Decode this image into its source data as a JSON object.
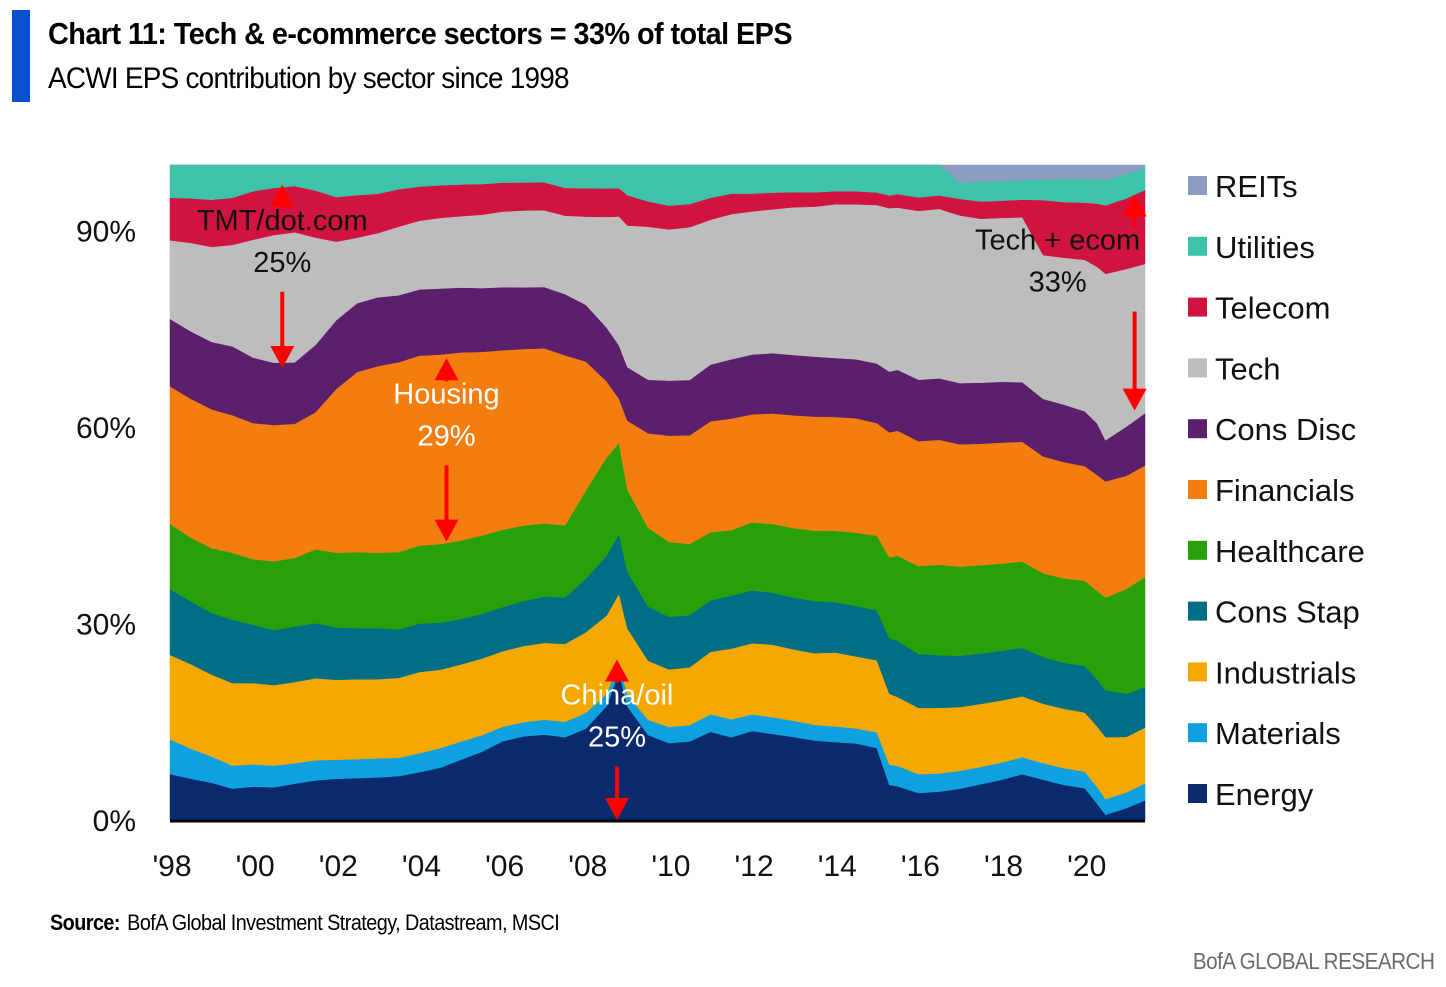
{
  "header": {
    "title": "Chart 11: Tech & e-commerce sectors = 33% of total EPS",
    "subtitle": "ACWI EPS contribution by sector since 1998",
    "accent_color": "#0a4fd0"
  },
  "footer": {
    "source_label": "Source:",
    "source_text": "BofA Global Investment Strategy, Datastream, MSCI",
    "brand": "BofA GLOBAL RESEARCH"
  },
  "chart_data": {
    "type": "area",
    "stacked": true,
    "title": "ACWI EPS contribution by sector since 1998",
    "xlabel": "",
    "ylabel": "",
    "xlim": [
      1998,
      2021.45
    ],
    "ylim": [
      0,
      100
    ],
    "y_ticks": [
      0,
      30,
      60,
      90
    ],
    "y_tick_labels": [
      "0%",
      "30%",
      "60%",
      "90%"
    ],
    "x_ticks": [
      1998,
      2000,
      2002,
      2004,
      2006,
      2008,
      2010,
      2012,
      2014,
      2016,
      2018,
      2020
    ],
    "x_tick_labels": [
      "'98",
      "'00",
      "'02",
      "'04",
      "'06",
      "'08",
      "'10",
      "'12",
      "'14",
      "'16",
      "'18",
      "'20"
    ],
    "grid": false,
    "legend_position": "right",
    "x": [
      1998.0,
      1998.5,
      1999.0,
      1999.5,
      2000.0,
      2000.5,
      2001.0,
      2001.5,
      2002.0,
      2002.5,
      2003.0,
      2003.5,
      2004.0,
      2004.5,
      2005.0,
      2005.5,
      2006.0,
      2006.5,
      2007.0,
      2007.5,
      2008.0,
      2008.5,
      2008.8,
      2009.0,
      2009.5,
      2010.0,
      2010.5,
      2011.0,
      2011.5,
      2012.0,
      2012.5,
      2013.0,
      2013.5,
      2014.0,
      2014.5,
      2015.0,
      2015.3,
      2015.5,
      2016.0,
      2016.5,
      2017.0,
      2017.5,
      2018.0,
      2018.5,
      2019.0,
      2019.5,
      2020.0,
      2020.3,
      2020.5,
      2021.0,
      2021.45
    ],
    "series": [
      {
        "name": "Energy",
        "color": "#0b2a6e",
        "values": [
          7.0,
          6.3,
          5.7,
          4.8,
          5.1,
          5.0,
          5.5,
          5.9,
          6.3,
          6.4,
          6.5,
          6.7,
          7.3,
          8.0,
          9.3,
          10.7,
          12.5,
          13.4,
          13.8,
          13.4,
          14.5,
          18.0,
          23.5,
          18.0,
          13.5,
          12.3,
          12.5,
          14.0,
          13.0,
          14.0,
          13.4,
          12.8,
          12.2,
          11.9,
          11.7,
          11.0,
          5.2,
          5.0,
          4.0,
          4.2,
          4.7,
          5.4,
          6.1,
          7.0,
          6.3,
          5.5,
          5.0,
          2.5,
          0.8,
          1.8,
          3.0
        ]
      },
      {
        "name": "Materials",
        "color": "#0ea1e0",
        "values": [
          5.3,
          4.6,
          4.0,
          3.5,
          3.4,
          3.3,
          3.1,
          3.0,
          2.9,
          2.9,
          2.9,
          2.8,
          2.9,
          3.0,
          2.8,
          2.6,
          2.3,
          2.3,
          2.4,
          2.5,
          2.5,
          1.9,
          1.5,
          1.9,
          2.4,
          2.6,
          2.6,
          2.8,
          2.8,
          2.6,
          2.6,
          2.5,
          2.4,
          2.4,
          2.3,
          2.4,
          3.0,
          3.0,
          2.8,
          2.7,
          2.7,
          2.6,
          2.6,
          2.6,
          2.6,
          2.6,
          2.6,
          2.6,
          2.4,
          2.4,
          2.6
        ]
      },
      {
        "name": "Industrials",
        "color": "#f5a800",
        "values": [
          12.9,
          12.9,
          12.5,
          12.6,
          12.4,
          12.3,
          12.3,
          12.2,
          12.2,
          12.2,
          12.1,
          12.2,
          12.4,
          12.0,
          11.9,
          12.0,
          12.0,
          12.2,
          12.4,
          12.6,
          12.8,
          12.4,
          11.0,
          10.5,
          9.4,
          9.2,
          9.2,
          9.9,
          11.1,
          11.2,
          11.3,
          11.0,
          11.0,
          11.3,
          11.0,
          11.0,
          10.5,
          10.2,
          9.8,
          9.7,
          9.6,
          9.5,
          9.4,
          9.3,
          9.3,
          9.3,
          9.3,
          9.4,
          9.5,
          8.5,
          8.5
        ]
      },
      {
        "name": "Cons Stap",
        "color": "#006f85",
        "values": [
          10.0,
          9.6,
          9.4,
          9.7,
          8.9,
          8.4,
          8.4,
          8.2,
          8.0,
          7.8,
          7.8,
          7.4,
          7.4,
          7.2,
          7.0,
          7.0,
          7.0,
          7.2,
          7.5,
          7.5,
          8.5,
          9.5,
          9.5,
          9.0,
          8.6,
          8.4,
          8.3,
          8.2,
          8.3,
          8.3,
          8.1,
          8.0,
          8.0,
          7.7,
          7.7,
          7.6,
          8.2,
          8.3,
          8.0,
          7.8,
          7.7,
          7.6,
          7.5,
          7.4,
          7.3,
          7.2,
          7.3,
          7.3,
          7.2,
          6.6,
          6.2
        ]
      },
      {
        "name": "Healthcare",
        "color": "#27a00a",
        "values": [
          10.0,
          9.7,
          9.9,
          10.2,
          10.0,
          10.5,
          10.4,
          11.0,
          11.4,
          11.6,
          11.5,
          11.8,
          11.9,
          12.0,
          12.1,
          12.3,
          12.3,
          12.1,
          11.8,
          11.7,
          14.0,
          15.5,
          14.5,
          13.0,
          12.5,
          12.0,
          11.3,
          10.8,
          10.3,
          10.7,
          10.7,
          10.7,
          10.8,
          10.9,
          11.2,
          11.4,
          12.0,
          12.6,
          13.0,
          13.4,
          13.4,
          13.3,
          13.2,
          13.2,
          13.1,
          13.2,
          13.4,
          13.7,
          14.2,
          16.0,
          16.8
        ]
      },
      {
        "name": "Financials",
        "color": "#f47d10",
        "values": [
          21.0,
          21.2,
          21.2,
          21.0,
          20.8,
          20.8,
          20.3,
          20.4,
          25.0,
          27.5,
          28.5,
          29.0,
          29.0,
          29.0,
          29.0,
          28.8,
          28.5,
          28.3,
          28.3,
          27.5,
          20.5,
          12.0,
          7.0,
          11.0,
          15.0,
          17.0,
          17.3,
          17.6,
          17.5,
          17.0,
          17.2,
          17.4,
          17.5,
          17.4,
          17.5,
          17.2,
          18.5,
          18.5,
          18.5,
          18.5,
          18.4,
          18.3,
          18.3,
          18.3,
          18.3,
          18.2,
          18.0,
          18.0,
          17.8,
          17.3,
          17.0
        ]
      },
      {
        "name": "Cons Disc",
        "color": "#5c1f6b",
        "values": [
          10.3,
          10.3,
          10.3,
          10.5,
          10.0,
          9.5,
          9.3,
          10.0,
          10.5,
          10.5,
          10.5,
          10.2,
          10.1,
          10.1,
          10.0,
          10.0,
          10.0,
          9.9,
          9.9,
          9.9,
          9.0,
          8.5,
          8.5,
          8.5,
          8.5,
          8.8,
          8.8,
          9.0,
          9.3,
          9.4,
          9.4,
          9.3,
          9.2,
          9.0,
          9.0,
          9.1,
          9.0,
          9.0,
          9.1,
          9.1,
          9.2,
          9.2,
          9.2,
          9.1,
          9.0,
          9.0,
          8.6,
          8.0,
          6.3,
          7.5,
          8.0
        ]
      },
      {
        "name": "Tech",
        "color": "#bdbdbd",
        "values": [
          12.0,
          13.5,
          14.5,
          15.5,
          18.0,
          19.5,
          19.7,
          16.0,
          12.0,
          10.0,
          9.8,
          10.5,
          10.5,
          10.8,
          11.0,
          11.5,
          12.0,
          12.3,
          12.4,
          12.7,
          14.0,
          17.5,
          20.5,
          22.5,
          24.3,
          24.2,
          24.3,
          23.0,
          22.8,
          22.5,
          22.4,
          22.8,
          23.0,
          23.5,
          23.7,
          24.2,
          24.2,
          24.0,
          25.0,
          25.1,
          25.2,
          24.7,
          24.8,
          25.2,
          22.5,
          23.0,
          23.8,
          24.3,
          25.5,
          24.1,
          22.8
        ]
      },
      {
        "name": "Telecom",
        "color": "#d0143f",
        "values": [
          6.5,
          6.8,
          7.2,
          7.2,
          7.4,
          7.2,
          7.0,
          7.0,
          6.8,
          6.5,
          6.0,
          5.7,
          5.2,
          5.0,
          4.9,
          4.8,
          4.6,
          4.5,
          4.5,
          4.5,
          4.5,
          4.5,
          4.5,
          4.8,
          4.0,
          3.8,
          3.7,
          3.5,
          3.2,
          2.8,
          2.6,
          2.3,
          2.2,
          2.0,
          2.0,
          1.9,
          1.9,
          2.0,
          2.0,
          2.0,
          2.5,
          2.6,
          2.6,
          2.7,
          8.6,
          8.7,
          9.0,
          9.8,
          10.5,
          10.8,
          11.3
        ]
      },
      {
        "name": "Utilities",
        "color": "#3ec3ab",
        "values": [
          5.0,
          5.1,
          5.3,
          5.0,
          4.0,
          3.5,
          3.2,
          3.8,
          4.9,
          4.6,
          4.4,
          3.7,
          3.3,
          3.1,
          3.0,
          3.0,
          2.8,
          2.8,
          2.8,
          3.7,
          3.7,
          3.7,
          3.7,
          4.8,
          5.8,
          6.5,
          6.2,
          5.2,
          4.5,
          4.5,
          4.3,
          4.2,
          4.2,
          4.0,
          4.0,
          4.2,
          4.5,
          4.3,
          4.8,
          4.5,
          2.5,
          3.0,
          3.0,
          3.0,
          3.2,
          3.6,
          3.7,
          3.8,
          3.9,
          3.7,
          3.5
        ]
      },
      {
        "name": "REITs",
        "color": "#8a9cbf",
        "values": [
          0.0,
          0.0,
          0.0,
          0.0,
          0.0,
          0.0,
          0.0,
          0.0,
          0.0,
          0.0,
          0.0,
          0.0,
          0.0,
          0.0,
          0.0,
          0.0,
          0.0,
          0.0,
          0.0,
          0.0,
          0.0,
          0.0,
          0.0,
          0.0,
          0.0,
          0.0,
          0.0,
          0.0,
          0.0,
          0.0,
          0.0,
          0.0,
          0.0,
          0.0,
          0.0,
          0.0,
          0.0,
          0.0,
          0.0,
          0.0,
          2.6,
          2.5,
          2.4,
          2.3,
          2.3,
          2.2,
          2.2,
          2.2,
          2.3,
          1.4,
          0.3
        ]
      }
    ],
    "legend_order": [
      "REITs",
      "Utilities",
      "Telecom",
      "Tech",
      "Cons Disc",
      "Financials",
      "Healthcare",
      "Cons Stap",
      "Industrials",
      "Materials",
      "Energy"
    ],
    "annotations": [
      {
        "id": "tmt",
        "lines": [
          "TMT/dot.com",
          "25%"
        ],
        "x": 2000.7,
        "y_label": 84,
        "arrow_top": 97,
        "arrow_bottom": 69,
        "arrow_color": "#ff0000",
        "text_color": "#111111"
      },
      {
        "id": "housing",
        "lines": [
          "Housing",
          "29%"
        ],
        "x": 2004.65,
        "y_label": 57.5,
        "arrow_top": 70.5,
        "arrow_bottom": 42.5,
        "arrow_color": "#ff0000",
        "text_color": "#ffffff"
      },
      {
        "id": "china",
        "lines": [
          "China/oil",
          "25%"
        ],
        "x": 2008.75,
        "y_label": 11.5,
        "arrow_top": 24.5,
        "arrow_bottom": 0,
        "arrow_color": "#ff0000",
        "text_color": "#ffffff"
      },
      {
        "id": "techecom",
        "lines": [
          "Tech + ecom",
          "33%"
        ],
        "x": 2021.2,
        "y_label": 81,
        "arrow_top": 95.5,
        "arrow_bottom": 62.5,
        "arrow_color": "#ff0000",
        "text_color": "#111111"
      }
    ]
  }
}
